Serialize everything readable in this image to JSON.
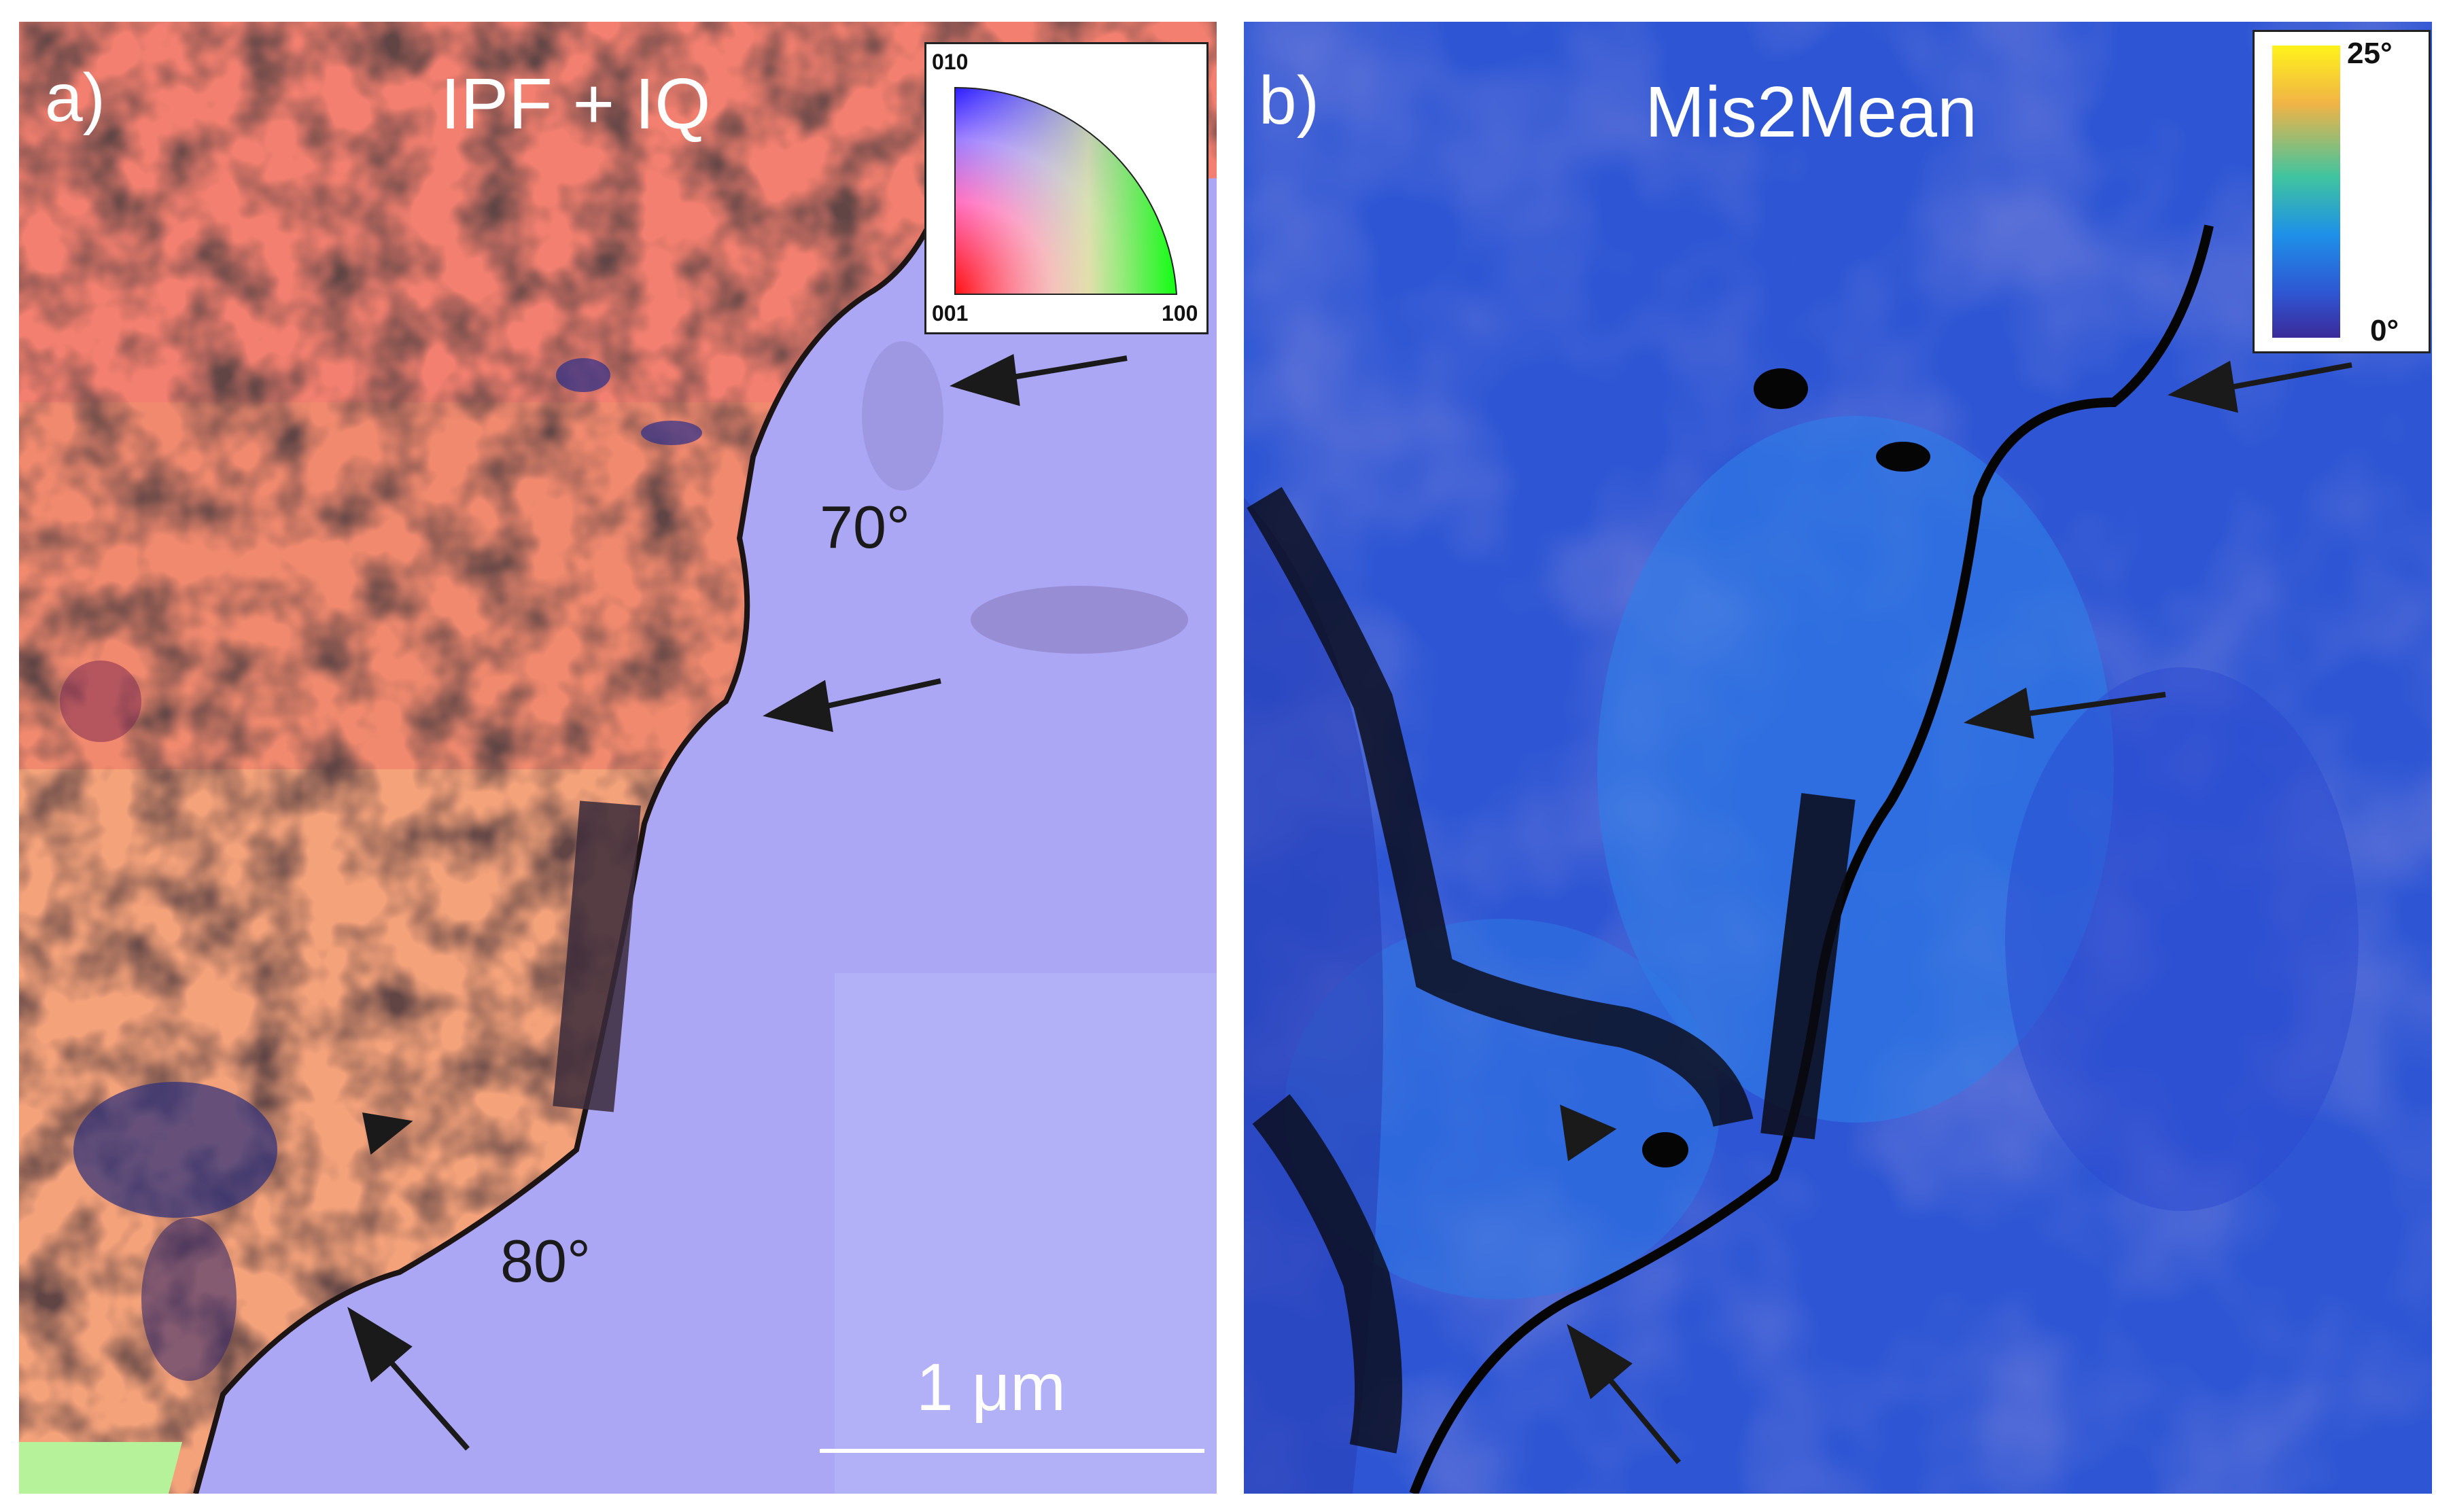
{
  "panel_a": {
    "label": "a)",
    "title": "IPF + IQ",
    "legend": {
      "top_label": "010",
      "bottom_left_label": "001",
      "bottom_right_label": "100"
    },
    "angle_top": "70°",
    "angle_bottom": "80°",
    "scale_bar_label": "1 μm",
    "colors": {
      "grain_left": "#f0896e",
      "grain_right": "#aca7f4",
      "boundary_dark": "#2a1a1a"
    }
  },
  "panel_b": {
    "label": "b)",
    "title": "Mis2Mean",
    "colorbar": {
      "max_label": "25°",
      "min_label": "0°"
    },
    "colors": {
      "background": "#2f55d2",
      "boundary": "#050505",
      "colorbar_top": "#fff200",
      "colorbar_bottom": "#3b2a9a"
    }
  }
}
